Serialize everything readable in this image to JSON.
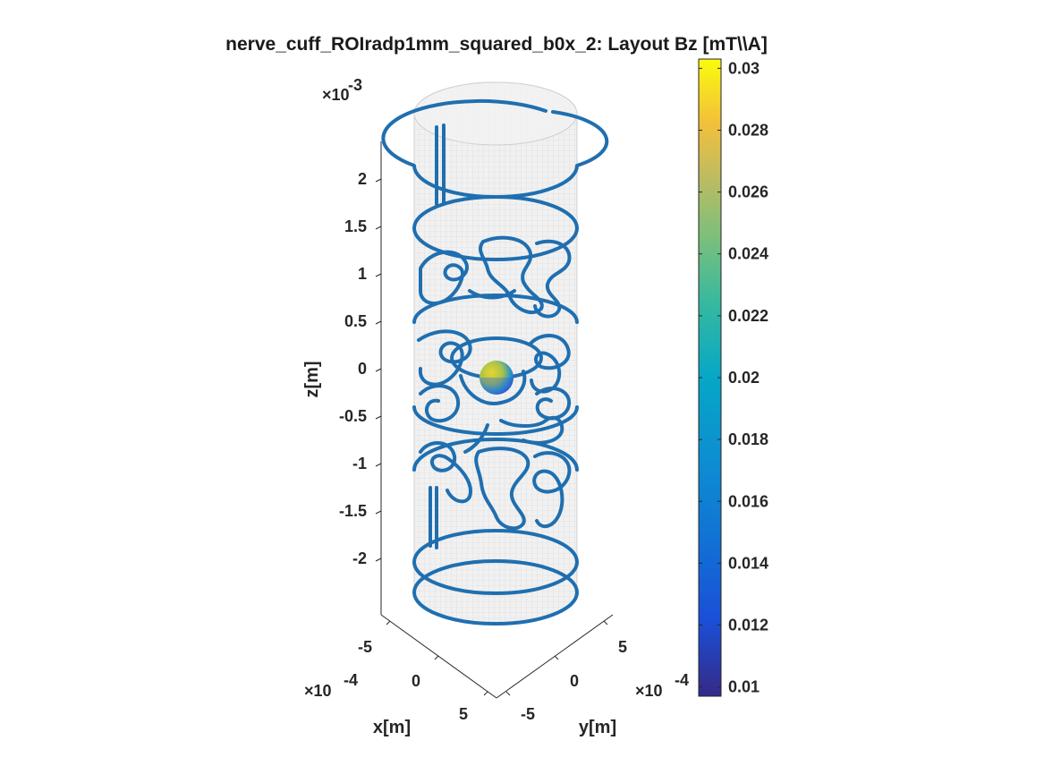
{
  "chart_data": {
    "type": "3d-surface-layout",
    "title": "nerve_cuff_ROIradp1mm_squared_b0x_2: Layout Bz [mT\\\\A]",
    "zlabel": "z[m]",
    "xlabel": "x[m]",
    "ylabel": "y[m]",
    "z_exponent_base": "×10",
    "z_exponent_power": "-3",
    "x_exponent_base": "×10",
    "x_exponent_power": "-4",
    "y_exponent_base": "×10",
    "y_exponent_power": "-4",
    "z_ticks": [
      "2",
      "1.5",
      "1",
      "0.5",
      "0",
      "-0.5",
      "-1",
      "-1.5",
      "-2"
    ],
    "z_tick_values": [
      0.002,
      0.0015,
      0.001,
      0.0005,
      0,
      -0.0005,
      -0.001,
      -0.0015,
      -0.002
    ],
    "x_ticks": [
      "-5",
      "0",
      "5"
    ],
    "x_tick_values": [
      -0.0005,
      0,
      0.0005
    ],
    "y_ticks": [
      "5",
      "0",
      "-5"
    ],
    "y_tick_values": [
      0.0005,
      0,
      -0.0005
    ],
    "colorbar": {
      "ticks": [
        "0.03",
        "0.028",
        "0.026",
        "0.024",
        "0.022",
        "0.02",
        "0.018",
        "0.016",
        "0.014",
        "0.012",
        "0.01"
      ],
      "tick_values": [
        0.03,
        0.028,
        0.026,
        0.024,
        0.022,
        0.02,
        0.018,
        0.016,
        0.014,
        0.012,
        0.01
      ],
      "range": [
        0.0097,
        0.0303
      ],
      "colormap": "parula"
    },
    "wire_color": "#1f6fb0",
    "grid": false
  }
}
